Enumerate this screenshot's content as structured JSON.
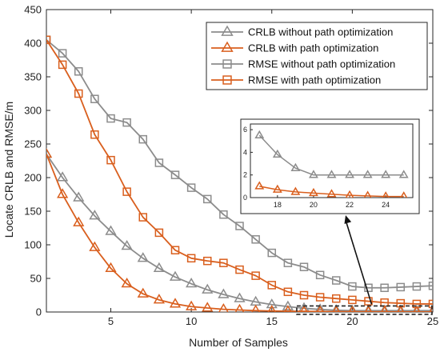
{
  "chart_data": {
    "type": "line",
    "title": "",
    "xlabel": "Number of Samples",
    "ylabel": "Locate CRLB and RMSE/m",
    "xlim": [
      1,
      25
    ],
    "ylim": [
      0,
      450
    ],
    "xticks": [
      5,
      10,
      15,
      20,
      25
    ],
    "yticks": [
      0,
      50,
      100,
      150,
      200,
      250,
      300,
      350,
      400,
      450
    ],
    "grid": false,
    "legend_position": "top-right",
    "x": [
      1,
      2,
      3,
      4,
      5,
      6,
      7,
      8,
      9,
      10,
      11,
      12,
      13,
      14,
      15,
      16,
      17,
      18,
      19,
      20,
      21,
      22,
      23,
      24,
      25
    ],
    "series": [
      {
        "name": "CRLB without path optimization",
        "color": "#8c8c8c",
        "marker": "triangle",
        "values": [
          235,
          200,
          170,
          143,
          120,
          98,
          80,
          65,
          52,
          42,
          33,
          26,
          20,
          15,
          11,
          8,
          5.5,
          3.8,
          2.6,
          2,
          2,
          2,
          2,
          2,
          2
        ]
      },
      {
        "name": "CRLB with path optimization",
        "color": "#d95f1e",
        "marker": "triangle",
        "values": [
          235,
          175,
          133,
          96,
          65,
          42,
          27,
          18,
          12,
          8,
          6,
          4,
          3,
          2,
          1.5,
          1.2,
          1,
          0.7,
          0.5,
          0.4,
          0.3,
          0.2,
          0.15,
          0.1,
          0.1
        ]
      },
      {
        "name": "RMSE without path optimization",
        "color": "#8c8c8c",
        "marker": "square",
        "values": [
          405,
          385,
          358,
          317,
          288,
          282,
          257,
          222,
          204,
          185,
          168,
          145,
          128,
          108,
          88,
          73,
          67,
          55,
          47,
          38,
          36,
          36,
          37,
          38,
          39
        ]
      },
      {
        "name": "RMSE with path optimization",
        "color": "#d95f1e",
        "marker": "square",
        "values": [
          405,
          368,
          325,
          264,
          226,
          179,
          141,
          118,
          92,
          80,
          76,
          73,
          63,
          54,
          40,
          30,
          25,
          22,
          20,
          18,
          16,
          14,
          13,
          12,
          12
        ]
      }
    ],
    "inset": {
      "xlim": [
        16.5,
        25.5
      ],
      "ylim": [
        0,
        6.5
      ],
      "xticks": [
        18,
        20,
        22,
        24
      ],
      "yticks": [
        0,
        2,
        4,
        6
      ],
      "series_shown": [
        0,
        1
      ]
    }
  }
}
